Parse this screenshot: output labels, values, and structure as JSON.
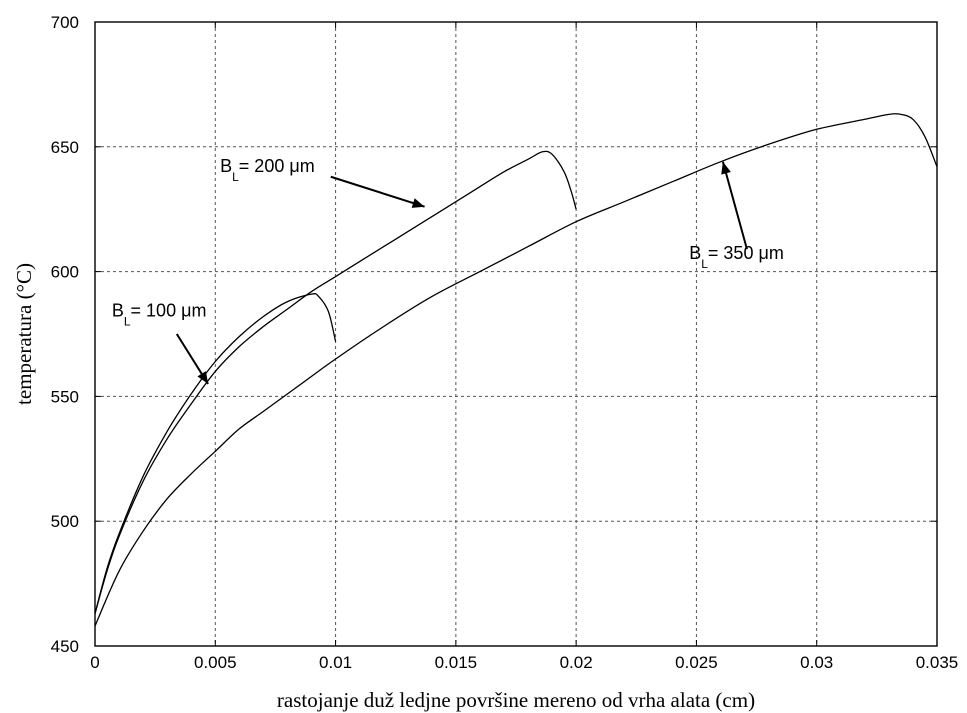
{
  "chart_data": {
    "type": "line",
    "title": "",
    "xlabel": "rastojanje duž ledjne površine mereno od vrha alata (cm)",
    "ylabel": "temperatura (°C)",
    "xlim": [
      0,
      0.035
    ],
    "ylim": [
      450,
      700
    ],
    "x_ticks": [
      "0",
      "0.005",
      "0.01",
      "0.015",
      "0.02",
      "0.025",
      "0.03",
      "0.035"
    ],
    "y_ticks": [
      "450",
      "500",
      "550",
      "600",
      "650",
      "700"
    ],
    "grid": true,
    "series": [
      {
        "name": "B_L = 100 μm",
        "x": [
          0,
          0.0005,
          0.001,
          0.002,
          0.003,
          0.004,
          0.005,
          0.006,
          0.007,
          0.008,
          0.009,
          0.0093,
          0.0097,
          0.01
        ],
        "y": [
          463,
          481,
          495,
          518,
          536,
          551,
          564,
          574,
          582,
          588,
          591,
          590,
          584,
          572
        ]
      },
      {
        "name": "B_L = 200 μm",
        "x": [
          0,
          0.0005,
          0.001,
          0.002,
          0.003,
          0.004,
          0.005,
          0.006,
          0.007,
          0.008,
          0.009,
          0.01,
          0.011,
          0.012,
          0.013,
          0.014,
          0.015,
          0.016,
          0.017,
          0.018,
          0.0186,
          0.019,
          0.0195,
          0.0198,
          0.02
        ],
        "y": [
          463,
          480,
          494,
          516,
          533,
          547,
          560,
          570,
          578,
          585,
          592,
          598,
          604,
          610,
          616,
          622,
          628,
          634,
          640,
          645,
          648,
          647,
          640,
          632,
          625
        ]
      },
      {
        "name": "B_L = 350 μm",
        "x": [
          0,
          0.001,
          0.002,
          0.003,
          0.004,
          0.005,
          0.006,
          0.007,
          0.008,
          0.009,
          0.01,
          0.012,
          0.014,
          0.016,
          0.018,
          0.02,
          0.022,
          0.024,
          0.026,
          0.028,
          0.03,
          0.032,
          0.033,
          0.0335,
          0.034,
          0.0345,
          0.035
        ],
        "y": [
          458,
          480,
          496,
          509,
          519,
          528,
          537,
          544,
          551,
          558,
          565,
          578,
          590,
          600,
          610,
          620,
          628,
          636,
          644,
          651,
          657,
          661,
          663,
          663,
          661,
          654,
          642
        ]
      }
    ],
    "annotations": [
      {
        "label": "B",
        "sub": "L",
        "text": "= 100 μm",
        "x": 0.0007,
        "y": 582,
        "arrow_from": [
          0.0034,
          575
        ],
        "arrow_to": [
          0.0047,
          555
        ]
      },
      {
        "label": "B",
        "sub": "L",
        "text": "= 200 μm",
        "x": 0.0052,
        "y": 640,
        "arrow_from": [
          0.0098,
          638
        ],
        "arrow_to": [
          0.0137,
          626
        ]
      },
      {
        "label": "B",
        "sub": "L",
        "text": "= 350 μm",
        "x": 0.0247,
        "y": 605,
        "arrow_from": [
          0.0271,
          609
        ],
        "arrow_to": [
          0.0261,
          644
        ]
      }
    ]
  }
}
